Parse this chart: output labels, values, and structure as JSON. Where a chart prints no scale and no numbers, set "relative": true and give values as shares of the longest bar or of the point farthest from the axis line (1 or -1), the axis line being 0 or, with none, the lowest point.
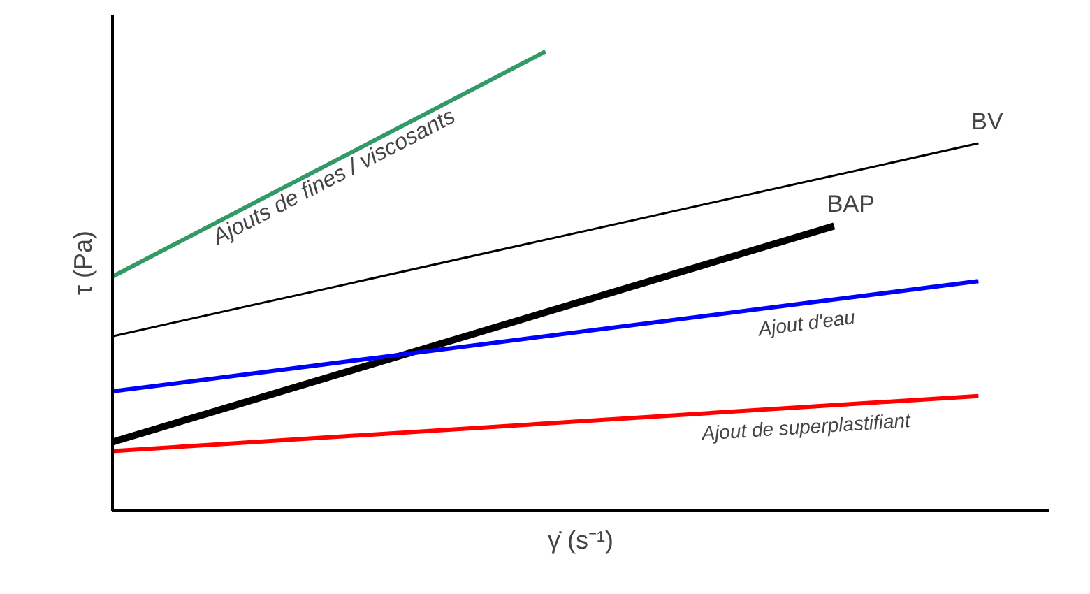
{
  "chart_data": {
    "type": "line",
    "relative": true,
    "xlabel": "γ̇ (s⁻¹)",
    "ylabel": "τ (Pa)",
    "grid": false,
    "marker": "none",
    "categories": [
      null,
      null,
      null,
      null,
      null,
      null,
      null,
      null,
      null,
      null,
      null,
      null,
      null,
      null,
      null,
      null,
      null,
      null,
      null
    ],
    "series": [
      {
        "name": "Ajouts de fines / viscosants",
        "color": "#339966",
        "values": [
          0.51,
          null,
          null,
          null,
          null,
          null,
          null,
          null,
          null,
          1.0,
          null,
          null,
          null,
          null,
          null,
          null,
          null,
          null,
          null
        ]
      },
      {
        "name": "BV",
        "color": "#000000",
        "values": [
          0.38,
          null,
          null,
          null,
          null,
          null,
          null,
          null,
          null,
          null,
          null,
          null,
          null,
          null,
          null,
          null,
          null,
          null,
          0.8
        ]
      },
      {
        "name": "BAP",
        "color": "#000000",
        "values": [
          0.15,
          null,
          null,
          null,
          null,
          null,
          null,
          null,
          null,
          null,
          null,
          null,
          null,
          null,
          null,
          0.62,
          null,
          null,
          null
        ]
      },
      {
        "name": "Ajout d'eau",
        "color": "#0000ff",
        "values": [
          0.26,
          null,
          null,
          null,
          null,
          null,
          null,
          null,
          null,
          null,
          null,
          null,
          null,
          null,
          null,
          null,
          null,
          null,
          0.5
        ]
      },
      {
        "name": "Ajout de superplastifiant",
        "color": "#ff0000",
        "values": [
          0.13,
          null,
          null,
          null,
          null,
          null,
          null,
          null,
          null,
          null,
          null,
          null,
          null,
          null,
          null,
          null,
          null,
          null,
          0.25
        ]
      }
    ]
  }
}
